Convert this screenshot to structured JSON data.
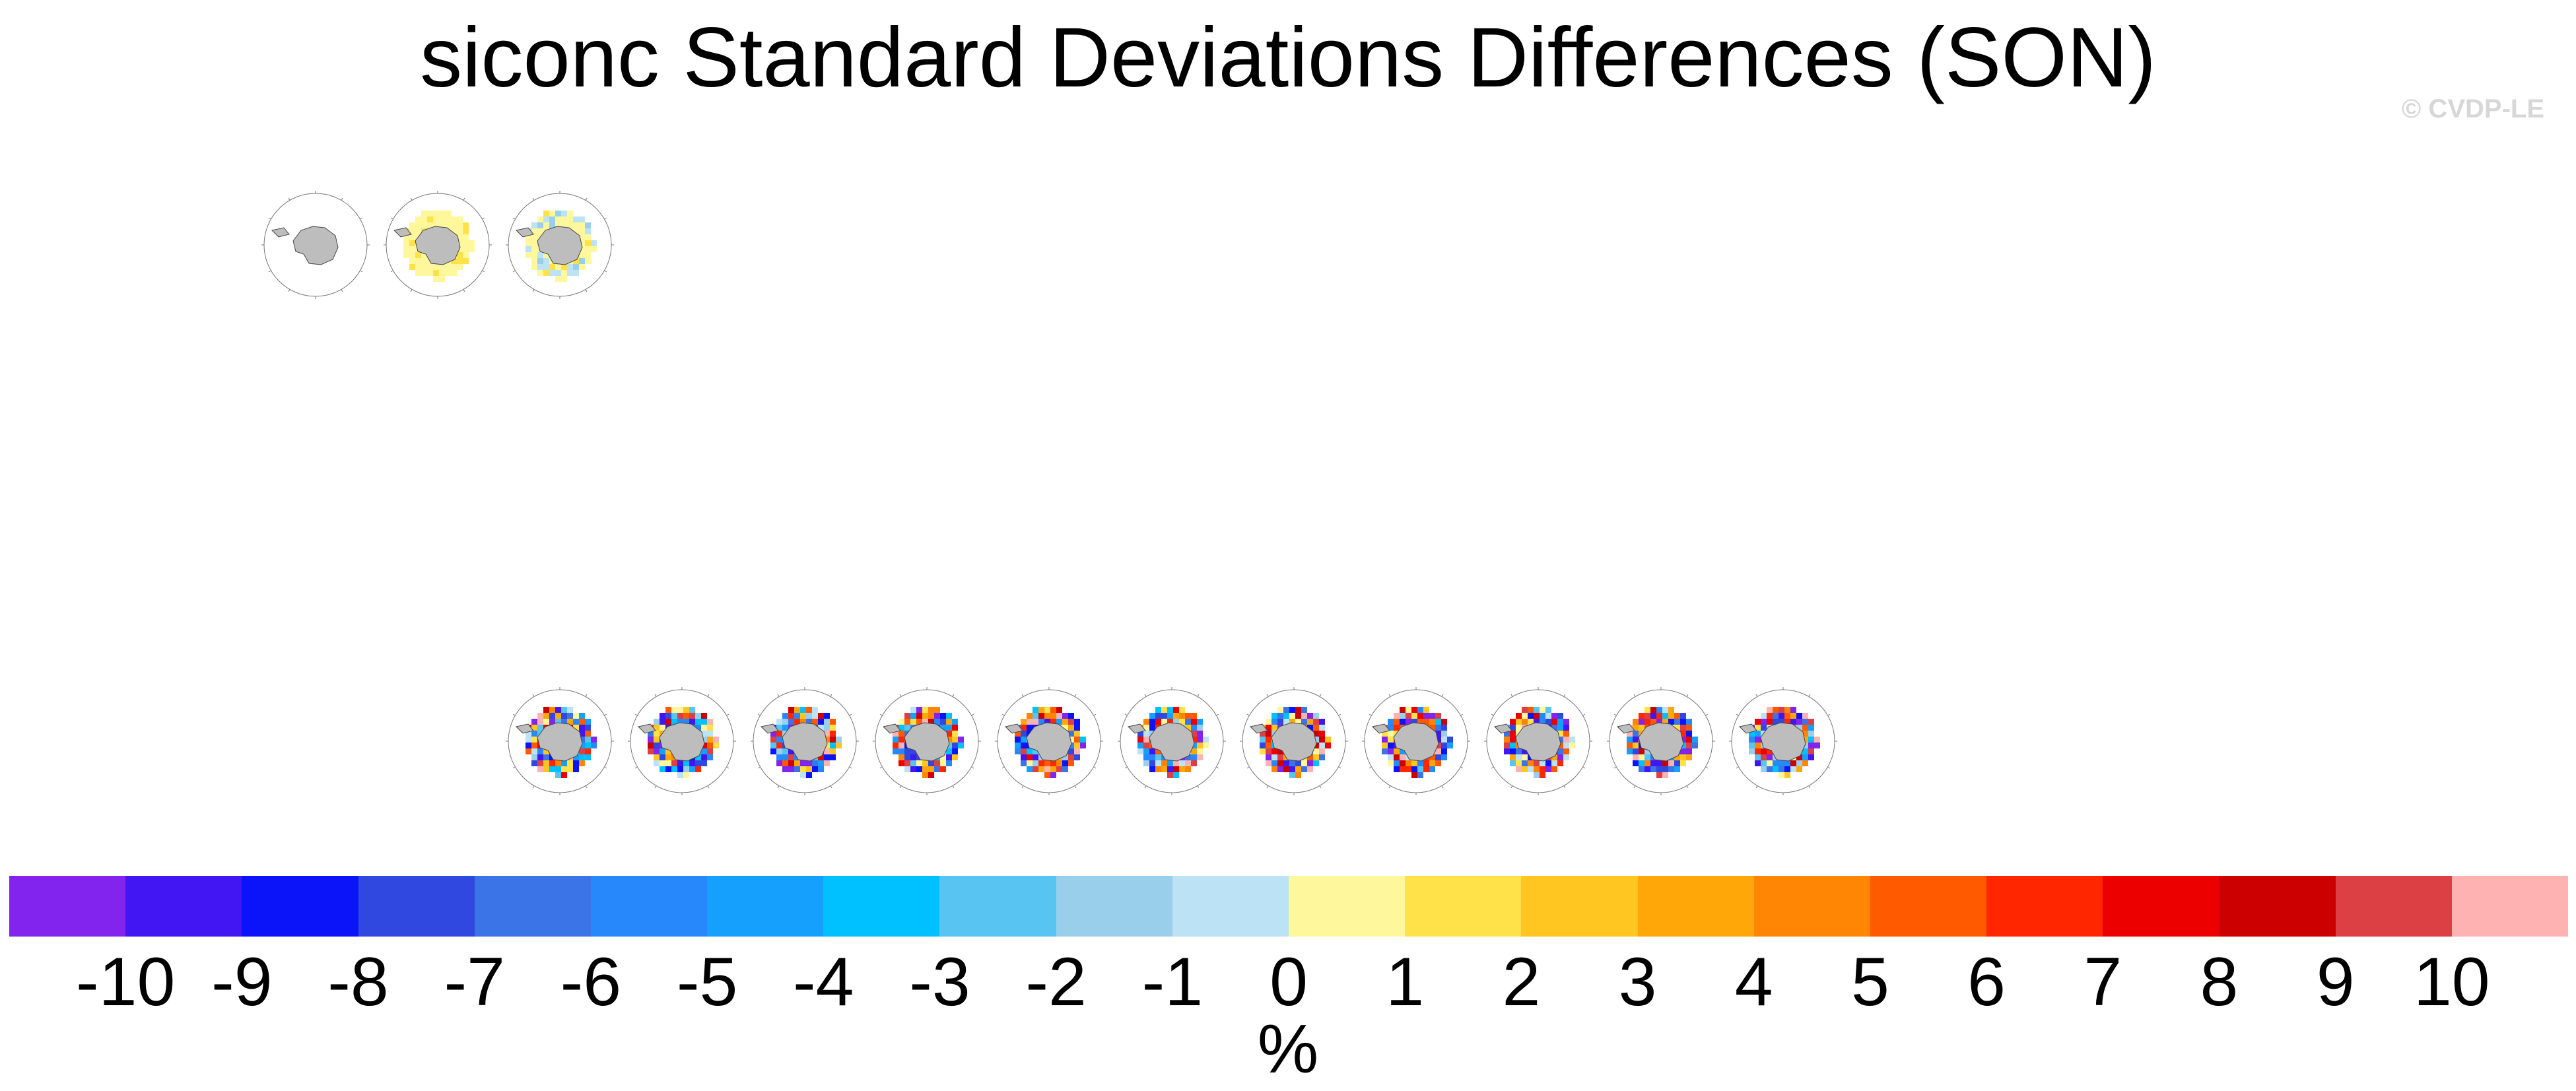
{
  "title": "siconc Standard Deviations Differences (SON)",
  "watermark": "© CVDP-LE",
  "chart_data": {
    "type": "heatmap",
    "title": "siconc Standard Deviations Differences (SON)",
    "panels_row_1": [
      {
        "variant": "land_only"
      },
      {
        "variant": "positive_ring"
      },
      {
        "variant": "mixed_ring"
      }
    ],
    "panels_row_2": [
      {
        "variant": "difference"
      },
      {
        "variant": "difference"
      },
      {
        "variant": "difference"
      },
      {
        "variant": "difference"
      },
      {
        "variant": "difference"
      },
      {
        "variant": "difference"
      },
      {
        "variant": "difference"
      },
      {
        "variant": "difference"
      },
      {
        "variant": "difference"
      },
      {
        "variant": "difference"
      },
      {
        "variant": "difference"
      }
    ],
    "colorbar": {
      "units": "%",
      "tick_labels": [
        "-10",
        "-9",
        "-8",
        "-7",
        "-6",
        "-5",
        "-4",
        "-3",
        "-2",
        "-1",
        "0",
        "1",
        "2",
        "3",
        "4",
        "5",
        "6",
        "7",
        "8",
        "9",
        "10"
      ],
      "colors": [
        "#8224ee",
        "#4116f2",
        "#0b14f8",
        "#3148e0",
        "#3a74e6",
        "#2688fb",
        "#16a0fe",
        "#00c1ff",
        "#58c4f1",
        "#9acfec",
        "#bbe2f5",
        "#fff79c",
        "#ffe14a",
        "#ffc622",
        "#ffa708",
        "#ff8504",
        "#ff5a00",
        "#ff2600",
        "#ec0000",
        "#cc0000",
        "#dc4045",
        "#feb2b2"
      ]
    }
  }
}
